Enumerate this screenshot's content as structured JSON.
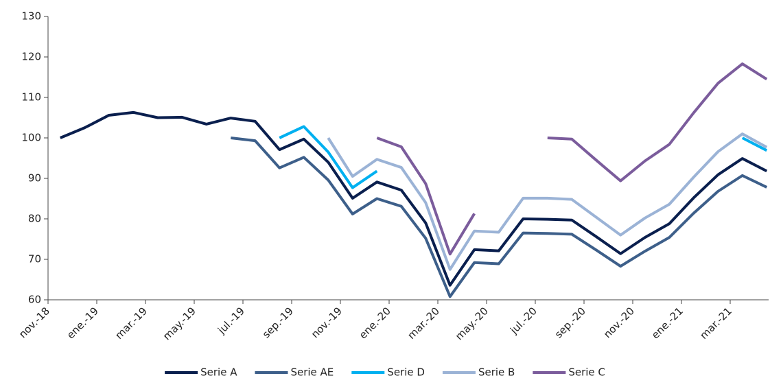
{
  "chart_data": {
    "type": "line",
    "categories": [
      "nov.-18",
      null,
      "ene.-19",
      null,
      "mar.-19",
      null,
      "may.-19",
      null,
      "jul.-19",
      null,
      "sep.-19",
      null,
      "nov.-19",
      null,
      "ene.-20",
      null,
      "mar.-20",
      null,
      "may.-20",
      null,
      "jul.-20",
      null,
      "sep.-20",
      null,
      "nov.-20",
      null,
      "ene.-21",
      null,
      "mar.-21",
      null
    ],
    "series": [
      {
        "name": "Serie A",
        "color": "#0a1f4e",
        "values": [
          100,
          102.5,
          105.6,
          106.3,
          105,
          105.1,
          103.4,
          104.9,
          104.1,
          97.1,
          99.7,
          94,
          85.1,
          89.1,
          87.1,
          79,
          63.6,
          72.4,
          72.1,
          80,
          79.9,
          79.7,
          75.6,
          71.4,
          75.4,
          78.8,
          85.2,
          90.9,
          94.9,
          91.8
        ]
      },
      {
        "name": "Serie AE",
        "color": "#3d5f8a",
        "values": [
          null,
          null,
          null,
          null,
          null,
          null,
          null,
          100,
          99.3,
          92.6,
          95.2,
          89.6,
          81.2,
          85,
          83.1,
          75.2,
          60.8,
          69.2,
          68.9,
          76.5,
          76.4,
          76.2,
          72.3,
          68.3,
          72,
          75.4,
          81.4,
          86.8,
          90.7,
          87.8
        ]
      },
      {
        "name": "Serie D",
        "color": "#00b0f0",
        "values": [
          null,
          null,
          null,
          null,
          null,
          null,
          null,
          null,
          null,
          100,
          102.8,
          96.5,
          87.7,
          91.8,
          null,
          null,
          null,
          null,
          null,
          null,
          null,
          null,
          null,
          null,
          null,
          null,
          null,
          null,
          100,
          96.9
        ]
      },
      {
        "name": "Serie B",
        "color": "#9bb3d6",
        "values": [
          null,
          null,
          null,
          null,
          null,
          null,
          null,
          null,
          null,
          null,
          null,
          100,
          90.5,
          94.7,
          92.7,
          84,
          67.5,
          77,
          76.7,
          85.1,
          85.1,
          84.8,
          80.4,
          76,
          80.2,
          83.6,
          90.3,
          96.6,
          101,
          97.7
        ]
      },
      {
        "name": "Serie C",
        "color": "#7b5c9c",
        "values": [
          null,
          null,
          null,
          null,
          null,
          null,
          null,
          null,
          null,
          null,
          null,
          null,
          null,
          100,
          97.8,
          88.7,
          71.3,
          81.3,
          null,
          null,
          100,
          99.7,
          94.5,
          89.4,
          94.3,
          98.4,
          106.2,
          113.5,
          118.3,
          114.5
        ]
      }
    ],
    "ylim": [
      60,
      130
    ],
    "yticks": [
      60,
      70,
      80,
      90,
      100,
      110,
      120,
      130
    ],
    "legend": "bottom"
  }
}
